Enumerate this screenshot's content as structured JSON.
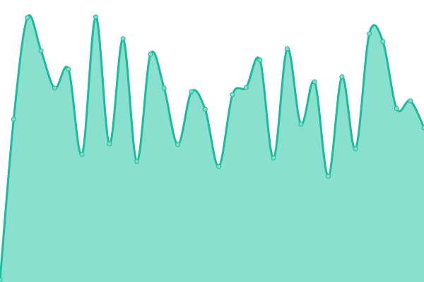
{
  "chart_data": {
    "type": "area",
    "title": "",
    "xlabel": "",
    "ylabel": "",
    "grid": false,
    "axes_visible": false,
    "ylim": [
      0,
      400
    ],
    "x": [
      0,
      1,
      2,
      3,
      4,
      5,
      6,
      7,
      8,
      9,
      10,
      11,
      12,
      13,
      14,
      15,
      16,
      17,
      18,
      19,
      20,
      21,
      22,
      23,
      24,
      25,
      26,
      27,
      28,
      29,
      30,
      31
    ],
    "series": [
      {
        "values": [
          3,
          231,
          375,
          328,
          275,
          302,
          181,
          376,
          196,
          345,
          171,
          323,
          275,
          195,
          270,
          245,
          164,
          266,
          276,
          315,
          176,
          331,
          224,
          284,
          150,
          291,
          189,
          352,
          341,
          246,
          257,
          219
        ]
      }
    ],
    "colors": {
      "fill": "#8ae0cf",
      "stroke": "#1abc9c",
      "point_fill": "#7fdcc8"
    }
  }
}
